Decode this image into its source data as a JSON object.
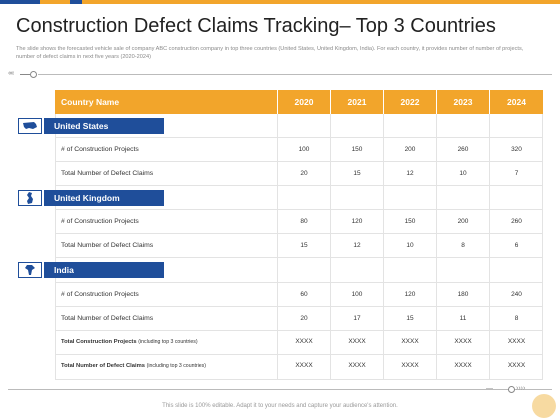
{
  "page": {
    "title": "Construction Defect Claims Tracking– Top 3 Countries",
    "subtitle": "The slide shows the forecasted vehicle sale of company ABC construction company in top three countries (United States, United Kingdom, India). For each country, it provides number of number of projects, number of defect claims in next five years (2020-2024)",
    "footer": "This slide is 100% editable. Adapt it to your needs and capture your audience's attention."
  },
  "colors": {
    "accent_orange": "#f2a52b",
    "accent_blue": "#1f4e9a",
    "topbar_blue": "#1f4e9a",
    "topbar_orange": "#f2a52b"
  },
  "table": {
    "header": [
      "Country Name",
      "2020",
      "2021",
      "2022",
      "2023",
      "2024"
    ],
    "countries": [
      {
        "name": "United States",
        "icon": "usa-map-icon",
        "rows": [
          {
            "label": "# of Construction Projects",
            "values": [
              "100",
              "150",
              "200",
              "260",
              "320"
            ]
          },
          {
            "label": "Total Number of Defect Claims",
            "values": [
              "20",
              "15",
              "12",
              "10",
              "7"
            ]
          }
        ]
      },
      {
        "name": "United Kingdom",
        "icon": "uk-map-icon",
        "rows": [
          {
            "label": "# of Construction Projects",
            "values": [
              "80",
              "120",
              "150",
              "200",
              "260"
            ]
          },
          {
            "label": "Total Number of Defect Claims",
            "values": [
              "15",
              "12",
              "10",
              "8",
              "6"
            ]
          }
        ]
      },
      {
        "name": "India",
        "icon": "india-map-icon",
        "rows": [
          {
            "label": "# of Construction Projects",
            "values": [
              "60",
              "100",
              "120",
              "180",
              "240"
            ]
          },
          {
            "label": "Total Number of Defect Claims",
            "values": [
              "20",
              "17",
              "15",
              "11",
              "8"
            ]
          }
        ]
      }
    ],
    "totals": [
      {
        "label": "Total Construction Projects",
        "note": "(including top 3 countries)",
        "values": [
          "XXXX",
          "XXXX",
          "XXXX",
          "XXXX",
          "XXXX"
        ]
      },
      {
        "label": "Total Number of Defect Claims",
        "note": "(including top 3 countries)",
        "values": [
          "XXXX",
          "XXXX",
          "XXXX",
          "XXXX",
          "XXXX"
        ]
      }
    ]
  }
}
